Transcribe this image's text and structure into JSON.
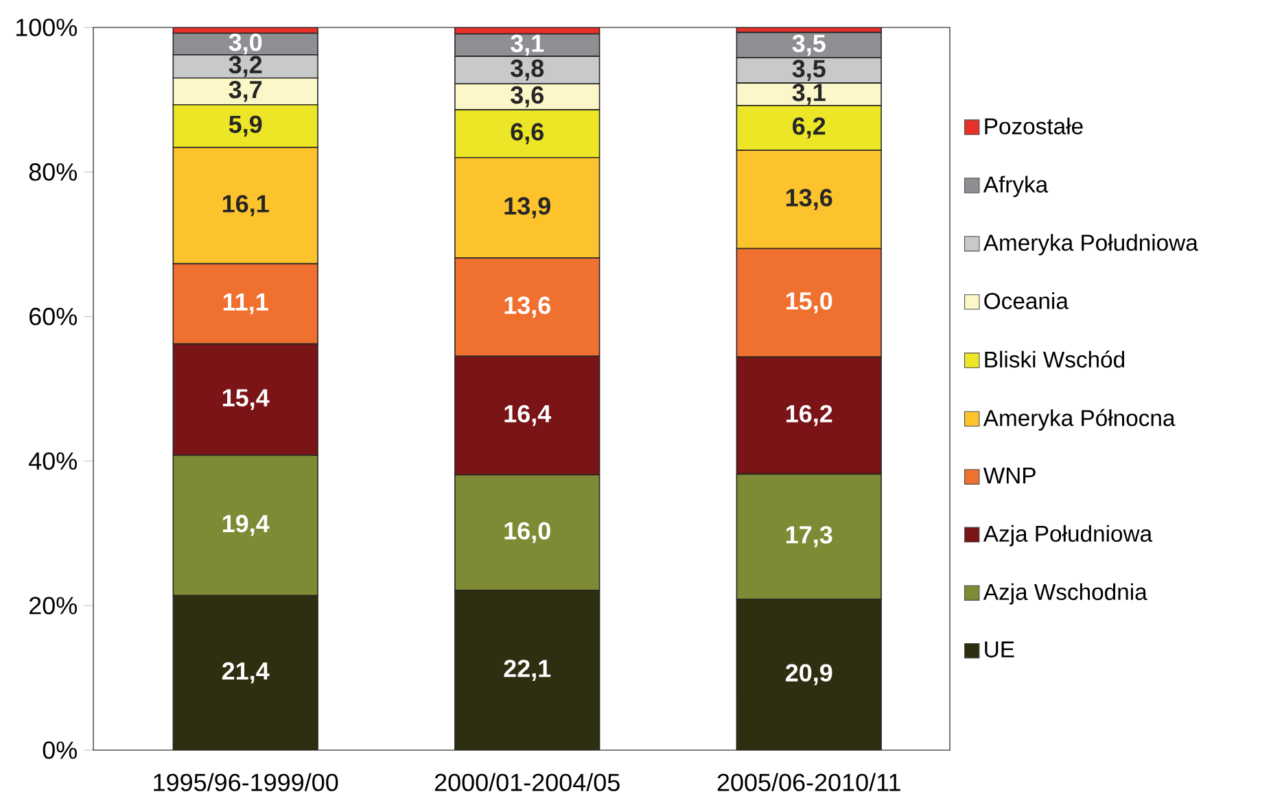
{
  "chart_data": {
    "type": "bar",
    "stacked": true,
    "legend": "right",
    "categories": [
      "1995/96-1999/00",
      "2000/01-2004/05",
      "2005/06-2010/11"
    ],
    "ylim": [
      0,
      100
    ],
    "yticks": [
      {
        "value": 0,
        "label": "0%"
      },
      {
        "value": 20,
        "label": "20%"
      },
      {
        "value": 40,
        "label": "40%"
      },
      {
        "value": 60,
        "label": "60%"
      },
      {
        "value": 80,
        "label": "80%"
      },
      {
        "value": 100,
        "label": "100%"
      }
    ],
    "series": [
      {
        "name": "UE",
        "color": "#2e2e10",
        "values": [
          21.4,
          22.1,
          20.9
        ],
        "value_labels": [
          "21,4",
          "22,1",
          "20,9"
        ]
      },
      {
        "name": "Azja Wschodnia",
        "color": "#7f8a35",
        "values": [
          19.4,
          16.0,
          17.3
        ],
        "value_labels": [
          "19,4",
          "16,0",
          "17,3"
        ]
      },
      {
        "name": "Azja Południowa",
        "color": "#7a1416",
        "values": [
          15.4,
          16.4,
          16.2
        ],
        "value_labels": [
          "15,4",
          "16,4",
          "16,2"
        ]
      },
      {
        "name": "WNP",
        "color": "#f07030",
        "values": [
          11.1,
          13.6,
          15.0
        ],
        "value_labels": [
          "11,1",
          "13,6",
          "15,0"
        ]
      },
      {
        "name": "Ameryka Północna",
        "color": "#fcc32c",
        "values": [
          16.1,
          13.9,
          13.6
        ],
        "value_labels": [
          "16,1",
          "13,9",
          "13,6"
        ]
      },
      {
        "name": "Bliski Wschód",
        "color": "#ede627",
        "values": [
          5.9,
          6.6,
          6.2
        ],
        "value_labels": [
          "5,9",
          "6,6",
          "6,2"
        ]
      },
      {
        "name": "Oceania",
        "color": "#fbf7c8",
        "values": [
          3.7,
          3.6,
          3.1
        ],
        "value_labels": [
          "3,7",
          "3,6",
          "3,1"
        ]
      },
      {
        "name": "Ameryka Południowa",
        "color": "#c8c9cb",
        "values": [
          3.2,
          3.8,
          3.5
        ],
        "value_labels": [
          "3,2",
          "3,8",
          "3,5"
        ]
      },
      {
        "name": "Afryka",
        "color": "#8e8f92",
        "values": [
          3.0,
          3.1,
          3.5
        ],
        "value_labels": [
          "3,0",
          "3,1",
          "3,5"
        ]
      },
      {
        "name": "Pozostałe",
        "color": "#e8302a",
        "values": [
          0.8,
          0.9,
          0.7
        ],
        "value_labels": [
          null,
          null,
          null
        ]
      }
    ]
  }
}
